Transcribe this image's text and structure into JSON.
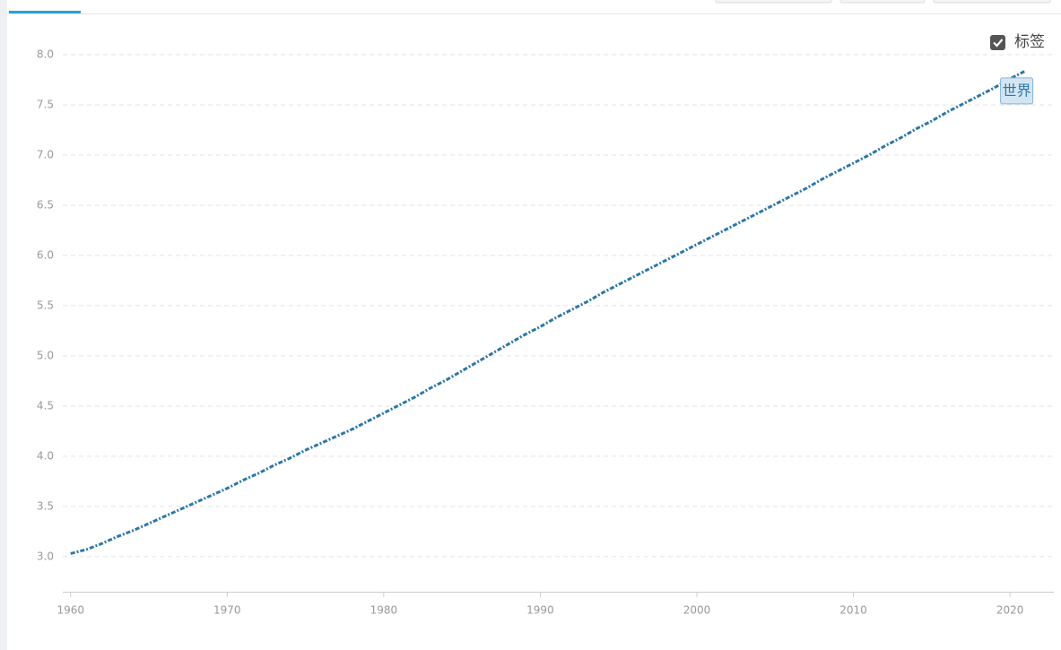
{
  "chart_data": {
    "type": "line",
    "x": [
      1960,
      1961,
      1962,
      1963,
      1964,
      1965,
      1966,
      1967,
      1968,
      1969,
      1970,
      1971,
      1972,
      1973,
      1974,
      1975,
      1976,
      1977,
      1978,
      1979,
      1980,
      1981,
      1982,
      1983,
      1984,
      1985,
      1986,
      1987,
      1988,
      1989,
      1990,
      1991,
      1992,
      1993,
      1994,
      1995,
      1996,
      1997,
      1998,
      1999,
      2000,
      2001,
      2002,
      2003,
      2004,
      2005,
      2006,
      2007,
      2008,
      2009,
      2010,
      2011,
      2012,
      2013,
      2014,
      2015,
      2016,
      2017,
      2018,
      2019,
      2020,
      2021
    ],
    "series": [
      {
        "name": "世界",
        "color": "#2e77a8",
        "values": [
          3.03,
          3.07,
          3.13,
          3.2,
          3.26,
          3.33,
          3.4,
          3.47,
          3.54,
          3.61,
          3.68,
          3.76,
          3.83,
          3.91,
          3.98,
          4.06,
          4.13,
          4.2,
          4.27,
          4.35,
          4.43,
          4.51,
          4.59,
          4.68,
          4.76,
          4.85,
          4.94,
          5.03,
          5.12,
          5.21,
          5.29,
          5.38,
          5.46,
          5.54,
          5.63,
          5.71,
          5.79,
          5.87,
          5.95,
          6.03,
          6.11,
          6.19,
          6.27,
          6.35,
          6.43,
          6.51,
          6.59,
          6.67,
          6.76,
          6.84,
          6.92,
          7.0,
          7.09,
          7.17,
          7.26,
          7.34,
          7.43,
          7.51,
          7.59,
          7.67,
          7.76,
          7.84
        ]
      }
    ],
    "xlim": [
      1959.5,
      2022.8
    ],
    "xticks": [
      1960,
      1970,
      1980,
      1990,
      2000,
      2010,
      2020
    ],
    "ylim": [
      2.65,
      8.0
    ],
    "yticks": [
      {
        "value": 3,
        "label": "3.0"
      },
      3.5,
      {
        "value": 4,
        "label": "4.0"
      },
      4.5,
      {
        "value": 5,
        "label": "5.0"
      },
      5.5,
      {
        "value": 6,
        "label": "6.0"
      },
      6.5,
      {
        "value": 7,
        "label": "7.0"
      },
      7.5,
      {
        "value": 8,
        "label": "8.0"
      }
    ],
    "grid": true,
    "label_toggle": "标签"
  }
}
